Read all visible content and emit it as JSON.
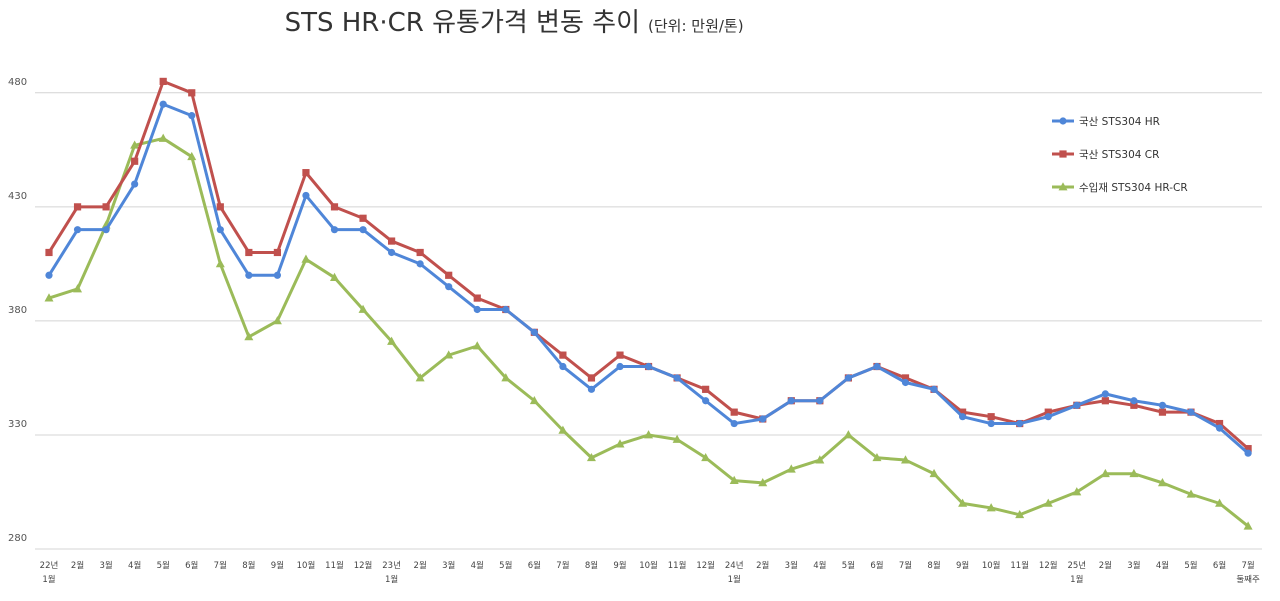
{
  "chart_data": {
    "type": "line",
    "title": "STS HR·CR 유통가격 변동 추이",
    "subtitle": "(단위: 만원/톤)",
    "ylim": [
      280,
      490
    ],
    "yticks": [
      280,
      330,
      380,
      430,
      480
    ],
    "grid": true,
    "legend_position": "right",
    "categories": [
      [
        "22년",
        "1월"
      ],
      [
        "2월"
      ],
      [
        "3월"
      ],
      [
        "4월"
      ],
      [
        "5월"
      ],
      [
        "6월"
      ],
      [
        "7월"
      ],
      [
        "8월"
      ],
      [
        "9월"
      ],
      [
        "10월"
      ],
      [
        "11월"
      ],
      [
        "12월"
      ],
      [
        "23년",
        "1월"
      ],
      [
        "2월"
      ],
      [
        "3월"
      ],
      [
        "4월"
      ],
      [
        "5월"
      ],
      [
        "6월"
      ],
      [
        "7월"
      ],
      [
        "8월"
      ],
      [
        "9월"
      ],
      [
        "10월"
      ],
      [
        "11월"
      ],
      [
        "12월"
      ],
      [
        "24년",
        "1월"
      ],
      [
        "2월"
      ],
      [
        "3월"
      ],
      [
        "4월"
      ],
      [
        "5월"
      ],
      [
        "6월"
      ],
      [
        "7월"
      ],
      [
        "8월"
      ],
      [
        "9월"
      ],
      [
        "10월"
      ],
      [
        "11월"
      ],
      [
        "12월"
      ],
      [
        "25년",
        "1월"
      ],
      [
        "2월"
      ],
      [
        "3월"
      ],
      [
        "4월"
      ],
      [
        "5월"
      ],
      [
        "6월"
      ],
      [
        "7월",
        "둘째주"
      ]
    ],
    "series": [
      {
        "name": "국산 STS304 HR",
        "color": "#4f86d8",
        "marker": "circle",
        "values": [
          400,
          420,
          420,
          440,
          475,
          470,
          420,
          400,
          400,
          435,
          420,
          420,
          410,
          405,
          395,
          385,
          385,
          375,
          360,
          350,
          360,
          360,
          355,
          345,
          335,
          337,
          345,
          345,
          355,
          360,
          353,
          350,
          338,
          335,
          335,
          338,
          343,
          348,
          345,
          343,
          340,
          333,
          322
        ]
      },
      {
        "name": "국산 STS304 CR",
        "color": "#c0504d",
        "marker": "square",
        "values": [
          410,
          430,
          430,
          450,
          485,
          480,
          430,
          410,
          410,
          445,
          430,
          425,
          415,
          410,
          400,
          390,
          385,
          375,
          365,
          355,
          365,
          360,
          355,
          350,
          340,
          337,
          345,
          345,
          355,
          360,
          355,
          350,
          340,
          338,
          335,
          340,
          343,
          345,
          343,
          340,
          340,
          335,
          324
        ]
      },
      {
        "name": "수입재 STS304 HR-CR",
        "color": "#9bbb59",
        "marker": "triangle",
        "values": [
          390,
          394,
          422,
          457,
          460,
          452,
          405,
          373,
          380,
          407,
          399,
          385,
          371,
          355,
          365,
          369,
          355,
          345,
          332,
          320,
          326,
          330,
          328,
          320,
          310,
          309,
          315,
          319,
          330,
          320,
          319,
          313,
          300,
          298,
          295,
          300,
          305,
          313,
          313,
          309,
          304,
          300,
          290
        ]
      }
    ]
  }
}
